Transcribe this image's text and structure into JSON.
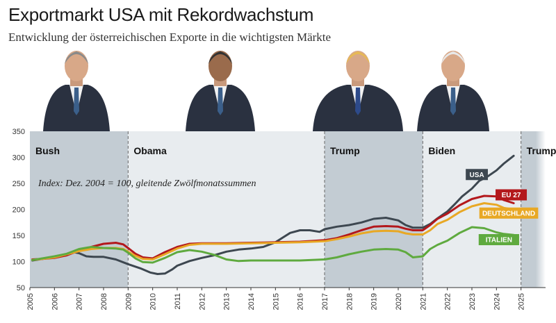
{
  "title": "Exportmarkt USA mit Rekordwachstum",
  "subtitle": "Entwicklung der österreichischen Exporte in die wichtigsten Märkte",
  "portraits": [
    {
      "name": "president-portrait-bush",
      "icon": "person-portrait-icon"
    },
    {
      "name": "president-portrait-obama",
      "icon": "person-portrait-icon"
    },
    {
      "name": "president-portrait-trump",
      "icon": "person-portrait-icon"
    },
    {
      "name": "president-portrait-biden",
      "icon": "person-portrait-icon"
    }
  ],
  "chart_data": {
    "type": "line",
    "note": "Index: Dez. 2004 = 100, gleitende Zwölfmonatssummen",
    "xlim": [
      2005,
      2026
    ],
    "ylim": [
      50,
      350
    ],
    "yticks": [
      50,
      100,
      150,
      200,
      250,
      300,
      350
    ],
    "xticks": [
      2005,
      2006,
      2007,
      2008,
      2009,
      2010,
      2011,
      2012,
      2013,
      2014,
      2015,
      2016,
      2017,
      2018,
      2019,
      2020,
      2021,
      2022,
      2023,
      2024,
      2025
    ],
    "periods": [
      {
        "label": "Bush",
        "start": 2005,
        "end": 2009,
        "color": "#c3ccd3"
      },
      {
        "label": "Obama",
        "start": 2009,
        "end": 2017,
        "color": "#e8ecef"
      },
      {
        "label": "Trump",
        "start": 2017,
        "end": 2021,
        "color": "#c3ccd3"
      },
      {
        "label": "Biden",
        "start": 2021,
        "end": 2025,
        "color": "#e8ecef"
      },
      {
        "label": "Trump",
        "start": 2025,
        "end": 2026,
        "color": "#c3ccd3"
      }
    ],
    "series": [
      {
        "name": "USA",
        "color": "#3d4750",
        "x": [
          2005.1,
          2005.5,
          2006,
          2006.5,
          2006.8,
          2007,
          2007.3,
          2007.6,
          2008,
          2008.5,
          2009,
          2009.5,
          2009.9,
          2010.2,
          2010.5,
          2010.8,
          2011,
          2011.5,
          2012,
          2012.5,
          2013,
          2013.5,
          2014,
          2014.5,
          2015,
          2015.3,
          2015.6,
          2016,
          2016.4,
          2016.8,
          2017,
          2017.5,
          2018,
          2018.5,
          2019,
          2019.5,
          2020,
          2020.3,
          2020.6,
          2021,
          2021.3,
          2021.6,
          2022,
          2022.3,
          2022.6,
          2023,
          2023.3,
          2023.6,
          2024,
          2024.3,
          2024.7
        ],
        "values": [
          102,
          105,
          108,
          112,
          118,
          116,
          110,
          109,
          109,
          104,
          95,
          87,
          79,
          76,
          77,
          85,
          92,
          101,
          107,
          112,
          119,
          123,
          125,
          128,
          137,
          146,
          155,
          160,
          160,
          157,
          162,
          167,
          170,
          175,
          182,
          184,
          179,
          170,
          165,
          165,
          172,
          183,
          196,
          210,
          225,
          240,
          255,
          262,
          275,
          288,
          303
        ]
      },
      {
        "name": "EU 27",
        "color": "#b3181c",
        "x": [
          2005.1,
          2005.5,
          2006,
          2006.5,
          2007,
          2007.5,
          2008,
          2008.5,
          2008.8,
          2009,
          2009.3,
          2009.6,
          2010,
          2010.5,
          2011,
          2011.5,
          2012,
          2013,
          2014,
          2015,
          2016,
          2017,
          2017.5,
          2018,
          2018.5,
          2019,
          2019.5,
          2020,
          2020.3,
          2020.6,
          2021,
          2021.3,
          2021.6,
          2022,
          2022.5,
          2023,
          2023.5,
          2024,
          2024.3,
          2024.7
        ],
        "values": [
          104,
          105,
          107,
          112,
          121,
          128,
          134,
          136,
          133,
          126,
          115,
          108,
          106,
          118,
          128,
          134,
          135,
          135,
          136,
          137,
          138,
          141,
          145,
          152,
          160,
          167,
          168,
          167,
          163,
          160,
          160,
          170,
          182,
          192,
          208,
          220,
          226,
          225,
          218,
          212
        ]
      },
      {
        "name": "DEUTSCHLAND",
        "color": "#e8a825",
        "x": [
          2005.1,
          2005.5,
          2006,
          2006.5,
          2007,
          2007.5,
          2008,
          2008.5,
          2008.8,
          2009,
          2009.3,
          2009.6,
          2010,
          2010.5,
          2011,
          2011.5,
          2012,
          2013,
          2014,
          2015,
          2016,
          2017,
          2017.5,
          2018,
          2018.5,
          2019,
          2019.5,
          2020,
          2020.3,
          2020.6,
          2021,
          2021.3,
          2021.6,
          2022,
          2022.5,
          2023,
          2023.5,
          2024,
          2024.3,
          2024.7
        ],
        "values": [
          103,
          105,
          108,
          114,
          120,
          124,
          126,
          126,
          124,
          119,
          111,
          105,
          104,
          114,
          125,
          132,
          134,
          134,
          135,
          136,
          137,
          139,
          143,
          148,
          154,
          158,
          159,
          158,
          154,
          152,
          152,
          160,
          172,
          180,
          195,
          206,
          212,
          209,
          203,
          200
        ]
      },
      {
        "name": "ITALIEN",
        "color": "#5faa3f",
        "x": [
          2005.1,
          2005.5,
          2006,
          2006.5,
          2007,
          2007.5,
          2008,
          2008.5,
          2008.8,
          2009,
          2009.3,
          2009.6,
          2010,
          2010.5,
          2011,
          2011.5,
          2012,
          2012.5,
          2013,
          2013.5,
          2014,
          2015,
          2016,
          2017,
          2017.5,
          2018,
          2018.5,
          2019,
          2019.5,
          2020,
          2020.3,
          2020.6,
          2021,
          2021.3,
          2021.6,
          2022,
          2022.5,
          2023,
          2023.5,
          2024,
          2024.3,
          2024.7
        ],
        "values": [
          103,
          106,
          110,
          115,
          124,
          128,
          126,
          125,
          123,
          117,
          106,
          99,
          98,
          107,
          118,
          122,
          119,
          113,
          104,
          101,
          102,
          102,
          102,
          104,
          108,
          114,
          119,
          123,
          124,
          123,
          118,
          108,
          110,
          124,
          132,
          140,
          155,
          166,
          164,
          156,
          153,
          151
        ]
      }
    ],
    "labels": [
      {
        "series": "USA",
        "text": "USA",
        "bg": "#3d4750",
        "x": 2023.2,
        "y": 267
      },
      {
        "series": "EU 27",
        "text": "EU 27",
        "bg": "#b3181c",
        "x": 2024.6,
        "y": 228
      },
      {
        "series": "DEUTSCHLAND",
        "text": "DEUTSCHLAND",
        "bg": "#e8a825",
        "x": 2024.5,
        "y": 193
      },
      {
        "series": "ITALIEN",
        "text": "ITALIEN",
        "bg": "#5faa3f",
        "x": 2024.1,
        "y": 142
      }
    ]
  }
}
